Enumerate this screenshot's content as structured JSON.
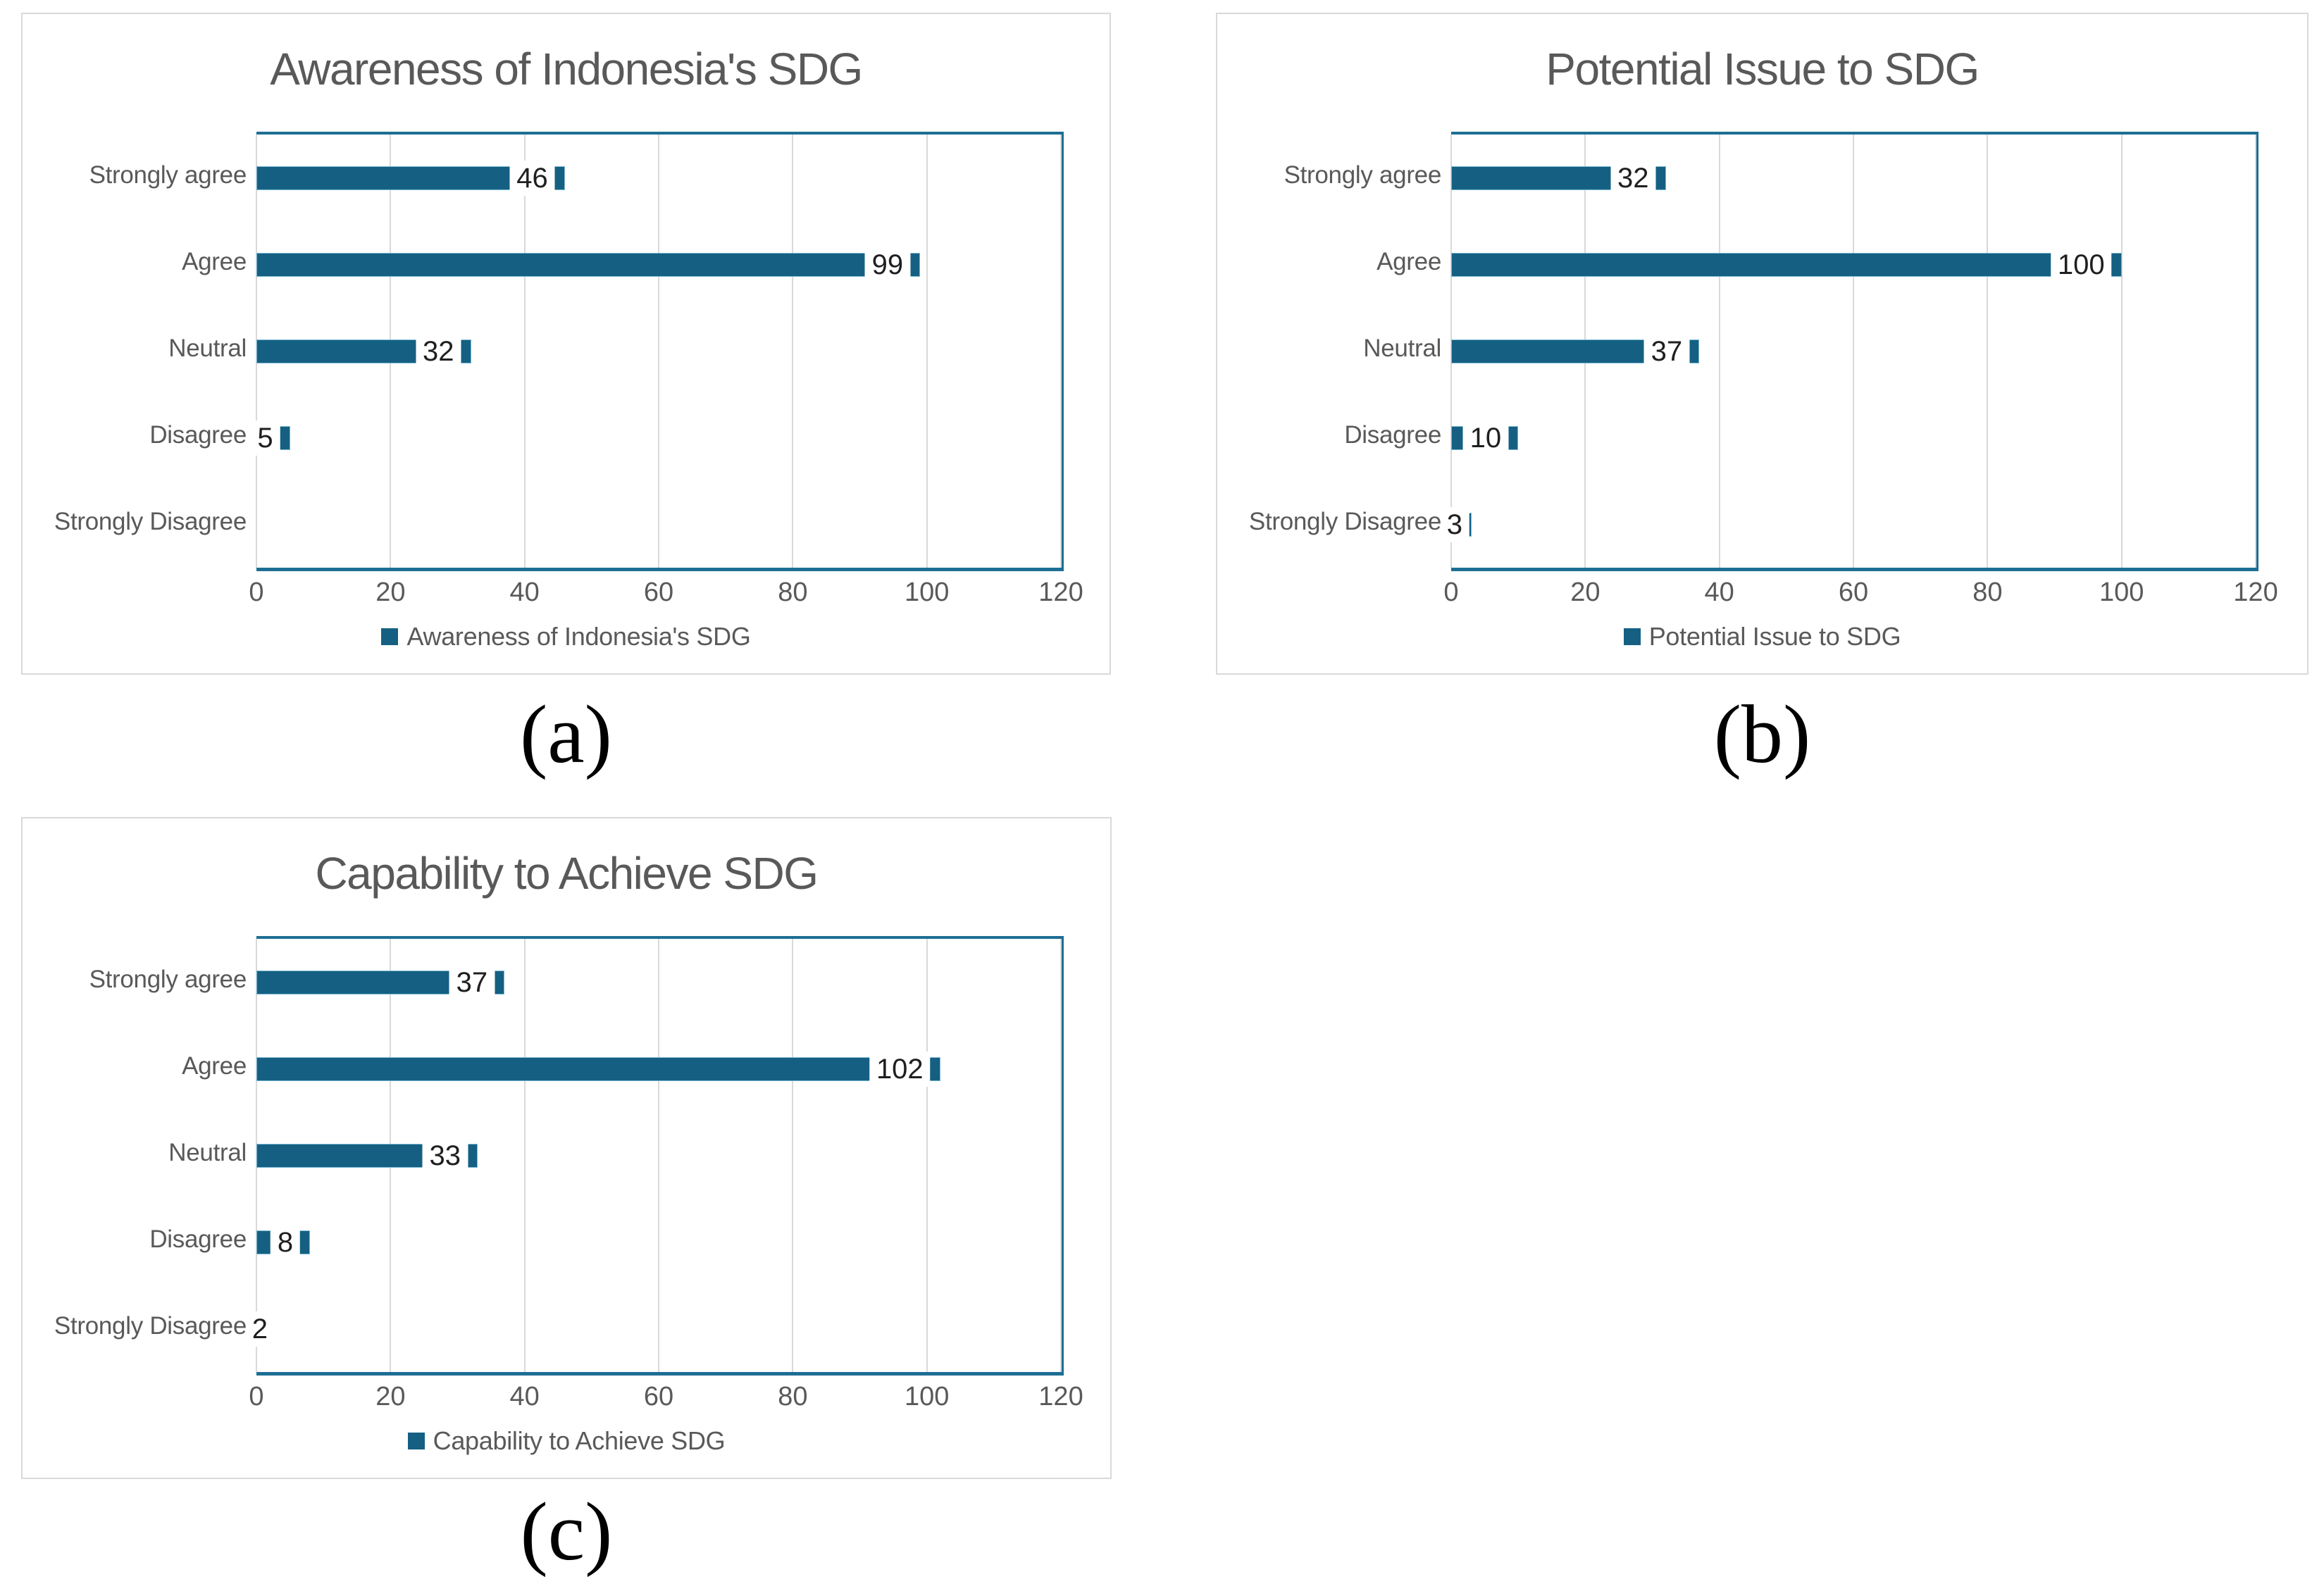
{
  "colors": {
    "page_bg": "#ffffff",
    "card_bg": "#ffffff",
    "card_border": "#d9d9d9",
    "bar": "#156082",
    "bar_edge": "#7ab8d3",
    "plot_border": "#1d6e93",
    "gridline": "#d9d9d9",
    "title_text": "#595959",
    "category_text": "#595959",
    "axis_text": "#595959",
    "legend_text": "#595959",
    "data_label_text": "#1f1f1f"
  },
  "captions": [
    "(a)",
    "(b)",
    "(c)"
  ],
  "chart_data": [
    {
      "type": "bar",
      "orientation": "horizontal",
      "title": "Awareness of Indonesia's SDG",
      "categories": [
        "Strongly agree",
        "Agree",
        "Neutral",
        "Disagree",
        "Strongly Disagree"
      ],
      "values": [
        46,
        99,
        32,
        5,
        0
      ],
      "data_labels": [
        "46",
        "99",
        "32",
        "5",
        ""
      ],
      "xlim": [
        0,
        120
      ],
      "xticks": [
        0,
        20,
        40,
        60,
        80,
        100,
        120
      ],
      "grid": true,
      "legend": [
        "Awareness of Indonesia's SDG"
      ],
      "legend_position": "bottom"
    },
    {
      "type": "bar",
      "orientation": "horizontal",
      "title": "Potential Issue to SDG",
      "categories": [
        "Strongly agree",
        "Agree",
        "Neutral",
        "Disagree",
        "Strongly Disagree"
      ],
      "values": [
        32,
        100,
        37,
        10,
        3
      ],
      "data_labels": [
        "32",
        "100",
        "37",
        "10",
        "3"
      ],
      "xlim": [
        0,
        120
      ],
      "xticks": [
        0,
        20,
        40,
        60,
        80,
        100,
        120
      ],
      "grid": true,
      "legend": [
        "Potential Issue to SDG"
      ],
      "legend_position": "bottom"
    },
    {
      "type": "bar",
      "orientation": "horizontal",
      "title": "Capability to Achieve SDG",
      "categories": [
        "Strongly agree",
        "Agree",
        "Neutral",
        "Disagree",
        "Strongly Disagree"
      ],
      "values": [
        37,
        102,
        33,
        8,
        2
      ],
      "data_labels": [
        "37",
        "102",
        "33",
        "8",
        "2"
      ],
      "xlim": [
        0,
        120
      ],
      "xticks": [
        0,
        20,
        40,
        60,
        80,
        100,
        120
      ],
      "grid": true,
      "legend": [
        "Capability to Achieve SDG"
      ],
      "legend_position": "bottom"
    }
  ]
}
